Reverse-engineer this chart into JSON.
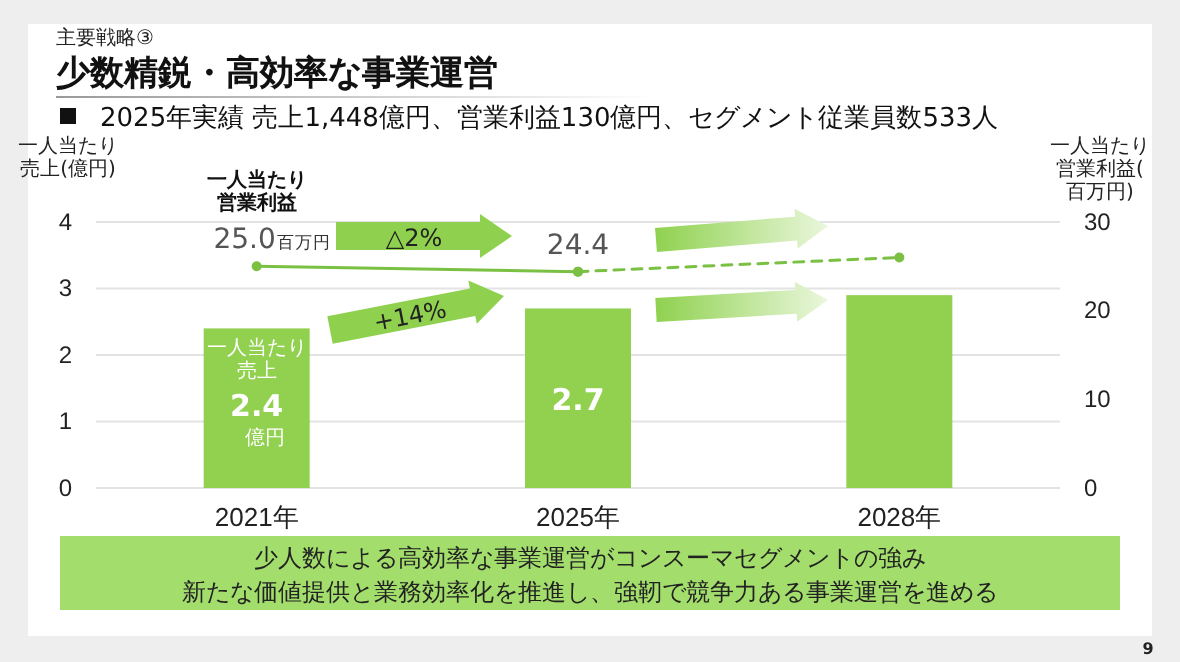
{
  "chart_data": {
    "type": "bar",
    "title": "少数精鋭・高効率な事業運営",
    "subtitle": "主要戦略③",
    "ylabel": "一人当たり売上(億円)",
    "y2label": "一人当たり営業利益(百万円)",
    "categories": [
      "2021年",
      "2025年",
      "2028年"
    ],
    "ylim": [
      0,
      4
    ],
    "yticks": [
      0,
      1,
      2,
      3,
      4
    ],
    "y2lim": [
      0,
      30
    ],
    "y2ticks": [
      0,
      10,
      20,
      30
    ],
    "grid": "y",
    "marker": "circle",
    "series": [
      {
        "name": "一人当たり売上",
        "color": "#92d050",
        "values": [
          2.4,
          2.7,
          2.9
        ],
        "value_labels": [
          "2.4",
          "2.7",
          null
        ]
      },
      {
        "name": "一人当たり営業利益",
        "type": "line",
        "axis": "y2",
        "color": "#7ac143",
        "line_style": "solid",
        "values": [
          25.0,
          24.4,
          null
        ],
        "value_labels": [
          "25.0",
          "24.4",
          null
        ]
      },
      {
        "type": "line",
        "axis": "y2",
        "color": "#7ac143",
        "line_style": "dashed",
        "values": [
          null,
          24.4,
          26
        ]
      }
    ],
    "annotations": [
      "2025年実績 売上1,448億円、営業利益130億円、セグメント従業員数533人",
      "△2%",
      "+14%",
      "億円",
      "百万円",
      "少人数による高効率な事業運営がコンスーマセグメントの強み",
      "新たな価値提供と業務効率化を推進し、強靭で競争力ある事業運営を進める",
      "9"
    ]
  }
}
